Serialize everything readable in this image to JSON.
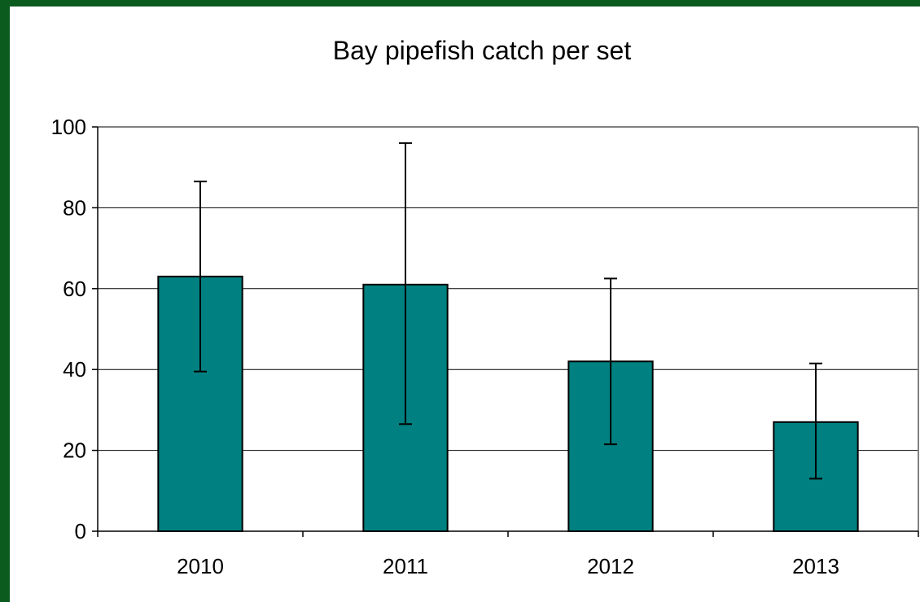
{
  "chart_data": {
    "type": "bar",
    "title": "Bay pipefish catch per set",
    "xlabel": "",
    "ylabel": "",
    "categories": [
      "2010",
      "2011",
      "2012",
      "2013"
    ],
    "values": [
      63,
      61,
      42,
      27
    ],
    "error_low": [
      39.5,
      26.5,
      21.5,
      13
    ],
    "error_high": [
      86.5,
      96,
      62.5,
      41.5
    ],
    "ylim": [
      0,
      100
    ],
    "yticks": [
      0,
      20,
      40,
      60,
      80,
      100
    ],
    "grid": true,
    "legend": "none",
    "bar_color": "#008080"
  }
}
